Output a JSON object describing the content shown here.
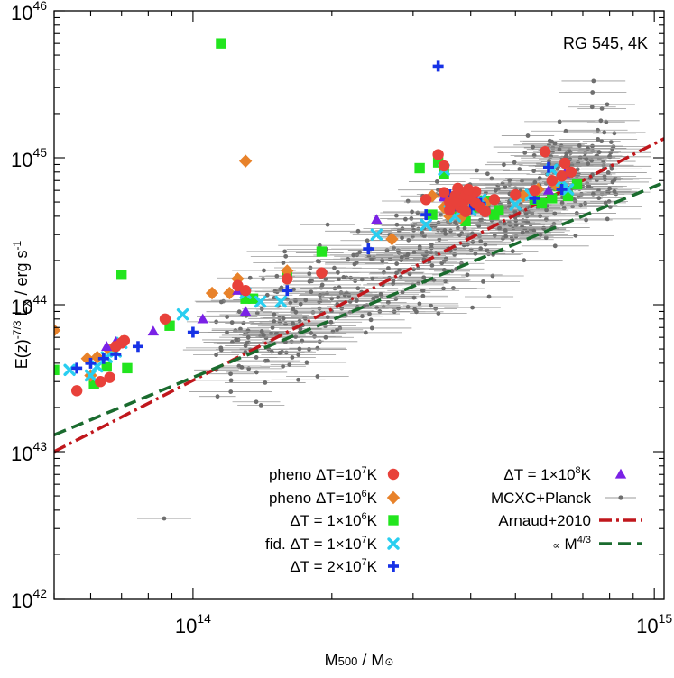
{
  "chart_data": {
    "type": "scatter",
    "annotation": "RG 545, 4K",
    "xlabel": "M500 / M⊙",
    "ylabel": "E(z)-7/3 LX / erg s-1",
    "xscale": "log",
    "yscale": "log",
    "xlim": [
      50000000000000.0,
      1050000000000000.0
    ],
    "ylim": [
      1e+42,
      1e+46
    ],
    "x_ticks": [
      {
        "value": 100000000000000.0,
        "base": "10",
        "exp": "14"
      },
      {
        "value": 1000000000000000.0,
        "base": "10",
        "exp": "15"
      }
    ],
    "y_ticks": [
      {
        "value": 1e+42,
        "base": "10",
        "exp": "42"
      },
      {
        "value": 1e+43,
        "base": "10",
        "exp": "43"
      },
      {
        "value": 1e+44,
        "base": "10",
        "exp": "44"
      },
      {
        "value": 1e+45,
        "base": "10",
        "exp": "45"
      },
      {
        "value": 1e+46,
        "base": "10",
        "exp": "46"
      }
    ],
    "grid": false,
    "legend_position": "bottom",
    "lines": [
      {
        "name": "Arnaud+2010",
        "color": "#c0171c",
        "style": "dash-dot",
        "points": [
          [
            50000000000000.0,
            1e+43
          ],
          [
            1050000000000000.0,
            1.35e+45
          ]
        ]
      },
      {
        "name": "∝ M4/3",
        "color": "#1a6b2e",
        "style": "dashed",
        "points": [
          [
            50000000000000.0,
            1.3e+43
          ],
          [
            1050000000000000.0,
            6.8e+44
          ]
        ]
      }
    ],
    "series": [
      {
        "name": "pheno ΔT=107K",
        "legend": [
          "pheno ΔT=10",
          "7",
          "K"
        ],
        "marker": "circle",
        "color": "#e8413a",
        "points": [
          [
            56000000000000.0,
            2.6e+43
          ],
          [
            63000000000000.0,
            3e+43
          ],
          [
            66000000000000.0,
            3.2e+43
          ],
          [
            68000000000000.0,
            5.2e+43
          ],
          [
            70000000000000.0,
            5.5e+43
          ],
          [
            71000000000000.0,
            5.7e+43
          ],
          [
            87000000000000.0,
            8e+43
          ],
          [
            125000000000000.0,
            1.35e+44
          ],
          [
            130000000000000.0,
            1.25e+44
          ],
          [
            160000000000000.0,
            1.5e+44
          ],
          [
            190000000000000.0,
            1.65e+44
          ],
          [
            320000000000000.0,
            5.2e+44
          ],
          [
            340000000000000.0,
            1.05e+45
          ],
          [
            350000000000000.0,
            5.8e+44
          ],
          [
            360000000000000.0,
            5e+44
          ],
          [
            370000000000000.0,
            5.5e+44
          ],
          [
            375000000000000.0,
            6.2e+44
          ],
          [
            380000000000000.0,
            4.6e+44
          ],
          [
            385000000000000.0,
            5e+44
          ],
          [
            390000000000000.0,
            5.6e+44
          ],
          [
            400000000000000.0,
            5.3e+44
          ],
          [
            410000000000000.0,
            4.9e+44
          ],
          [
            420000000000000.0,
            4.6e+44
          ],
          [
            430000000000000.0,
            4.3e+44
          ],
          [
            410000000000000.0,
            5.9e+44
          ],
          [
            390000000000000.0,
            4.3e+44
          ],
          [
            370000000000000.0,
            4.9e+44
          ],
          [
            450000000000000.0,
            5.2e+44
          ],
          [
            500000000000000.0,
            5.6e+44
          ],
          [
            550000000000000.0,
            6e+44
          ],
          [
            580000000000000.0,
            1.1e+45
          ],
          [
            600000000000000.0,
            7e+44
          ],
          [
            630000000000000.0,
            7.5e+44
          ],
          [
            640000000000000.0,
            9.2e+44
          ],
          [
            660000000000000.0,
            8e+44
          ],
          [
            350000000000000.0,
            8.8e+44
          ],
          [
            360000000000000.0,
            4.4e+44
          ],
          [
            395000000000000.0,
            6.1e+44
          ]
        ]
      },
      {
        "name": "pheno ΔT=106K",
        "legend": [
          "pheno ΔT=10",
          "6",
          "K"
        ],
        "marker": "diamond",
        "color": "#e8822a",
        "points": [
          [
            50000000000000.0,
            6.7e+43
          ],
          [
            59000000000000.0,
            4.3e+43
          ],
          [
            60000000000000.0,
            3.3e+43
          ],
          [
            62000000000000.0,
            4.4e+43
          ],
          [
            66000000000000.0,
            4.9e+43
          ],
          [
            68000000000000.0,
            5.3e+43
          ],
          [
            70000000000000.0,
            5.6e+43
          ],
          [
            110000000000000.0,
            1.2e+44
          ],
          [
            120000000000000.0,
            1.2e+44
          ],
          [
            125000000000000.0,
            1.5e+44
          ],
          [
            130000000000000.0,
            9.5e+44
          ],
          [
            160000000000000.0,
            1.7e+44
          ],
          [
            270000000000000.0,
            2.8e+44
          ],
          [
            330000000000000.0,
            5.5e+44
          ],
          [
            350000000000000.0,
            4.6e+44
          ],
          [
            360000000000000.0,
            4e+44
          ],
          [
            375000000000000.0,
            4.6e+44
          ],
          [
            390000000000000.0,
            4.8e+44
          ],
          [
            410000000000000.0,
            5.1e+44
          ],
          [
            430000000000000.0,
            4.9e+44
          ],
          [
            520000000000000.0,
            5.5e+44
          ],
          [
            560000000000000.0,
            6.1e+44
          ],
          [
            610000000000000.0,
            6.6e+44
          ],
          [
            380000000000000.0,
            3.9e+44
          ]
        ]
      },
      {
        "name": "ΔT = 1×106K",
        "legend": [
          "ΔT = 1×10",
          "6",
          "K"
        ],
        "marker": "square",
        "color": "#22e51e",
        "points": [
          [
            50000000000000.0,
            3.6e+43
          ],
          [
            61000000000000.0,
            2.9e+43
          ],
          [
            65000000000000.0,
            3.8e+43
          ],
          [
            67000000000000.0,
            4.9e+43
          ],
          [
            70000000000000.0,
            1.6e+44
          ],
          [
            72000000000000.0,
            3.7e+43
          ],
          [
            89000000000000.0,
            7.2e+43
          ],
          [
            115000000000000.0,
            6e+45
          ],
          [
            130000000000000.0,
            1.1e+44
          ],
          [
            135000000000000.0,
            1.1e+44
          ],
          [
            160000000000000.0,
            1.6e+44
          ],
          [
            190000000000000.0,
            2.3e+44
          ],
          [
            310000000000000.0,
            8.5e+44
          ],
          [
            340000000000000.0,
            9.3e+44
          ],
          [
            350000000000000.0,
            7.8e+44
          ],
          [
            370000000000000.0,
            4.2e+44
          ],
          [
            380000000000000.0,
            5.5e+44
          ],
          [
            390000000000000.0,
            3.7e+44
          ],
          [
            410000000000000.0,
            4.6e+44
          ],
          [
            430000000000000.0,
            5.1e+44
          ],
          [
            450000000000000.0,
            4.1e+44
          ],
          [
            550000000000000.0,
            5.2e+44
          ],
          [
            570000000000000.0,
            4.9e+44
          ],
          [
            600000000000000.0,
            5.3e+44
          ],
          [
            620000000000000.0,
            6.4e+44
          ],
          [
            650000000000000.0,
            5.5e+44
          ],
          [
            680000000000000.0,
            6.6e+44
          ],
          [
            330000000000000.0,
            4.1e+44
          ],
          [
            365000000000000.0,
            4.7e+44
          ],
          [
            460000000000000.0,
            4.4e+44
          ]
        ]
      },
      {
        "name": "fid. ΔT = 1×107K",
        "legend": [
          "fid. ΔT = 1×10",
          "7",
          "K"
        ],
        "marker": "cross",
        "color": "#29cef0",
        "points": [
          [
            54000000000000.0,
            3.6e+43
          ],
          [
            60000000000000.0,
            3.3e+43
          ],
          [
            62000000000000.0,
            3.8e+43
          ],
          [
            65000000000000.0,
            4.4e+43
          ],
          [
            68000000000000.0,
            4.8e+43
          ],
          [
            70000000000000.0,
            5.5e+43
          ],
          [
            95000000000000.0,
            8.6e+43
          ],
          [
            130000000000000.0,
            1.2e+44
          ],
          [
            140000000000000.0,
            1.05e+44
          ],
          [
            155000000000000.0,
            1.05e+44
          ],
          [
            250000000000000.0,
            3e+44
          ],
          [
            320000000000000.0,
            3.5e+44
          ],
          [
            350000000000000.0,
            8.3e+44
          ],
          [
            360000000000000.0,
            5e+44
          ],
          [
            370000000000000.0,
            4e+44
          ],
          [
            385000000000000.0,
            4.6e+44
          ],
          [
            400000000000000.0,
            4.4e+44
          ],
          [
            420000000000000.0,
            5.2e+44
          ],
          [
            500000000000000.0,
            4.8e+44
          ],
          [
            540000000000000.0,
            5.6e+44
          ],
          [
            600000000000000.0,
            8.3e+44
          ],
          [
            630000000000000.0,
            7e+44
          ],
          [
            650000000000000.0,
            6.1e+44
          ]
        ]
      },
      {
        "name": "ΔT = 2×107K",
        "legend": [
          "ΔT = 2×10",
          "7",
          "K"
        ],
        "marker": "plus",
        "color": "#1732e6",
        "points": [
          [
            56000000000000.0,
            3.7e+43
          ],
          [
            60000000000000.0,
            4e+43
          ],
          [
            64000000000000.0,
            4.3e+43
          ],
          [
            68000000000000.0,
            4.6e+43
          ],
          [
            76000000000000.0,
            5.2e+43
          ],
          [
            100000000000000.0,
            6.5e+43
          ],
          [
            160000000000000.0,
            1.25e+44
          ],
          [
            240000000000000.0,
            2.4e+44
          ],
          [
            320000000000000.0,
            4.1e+44
          ],
          [
            340000000000000.0,
            4.2e+45
          ],
          [
            360000000000000.0,
            5.6e+44
          ],
          [
            380000000000000.0,
            5e+44
          ],
          [
            400000000000000.0,
            4.5e+44
          ],
          [
            420000000000000.0,
            4.9e+44
          ],
          [
            550000000000000.0,
            5.3e+44
          ],
          [
            590000000000000.0,
            8.6e+44
          ],
          [
            630000000000000.0,
            6.1e+44
          ],
          [
            370000000000000.0,
            4.7e+44
          ]
        ]
      },
      {
        "name": "ΔT = 1×108K",
        "legend": [
          "ΔT = 1×10",
          "8",
          "K"
        ],
        "marker": "triangle",
        "color": "#7a21e6",
        "points": [
          [
            65000000000000.0,
            5.2e+43
          ],
          [
            68000000000000.0,
            5.6e+43
          ],
          [
            82000000000000.0,
            6.6e+43
          ],
          [
            105000000000000.0,
            8e+43
          ],
          [
            125000000000000.0,
            1.25e+44
          ],
          [
            130000000000000.0,
            9e+43
          ],
          [
            250000000000000.0,
            3.8e+44
          ],
          [
            350000000000000.0,
            5.4e+44
          ],
          [
            370000000000000.0,
            5e+44
          ],
          [
            390000000000000.0,
            4.6e+44
          ],
          [
            410000000000000.0,
            5.2e+44
          ],
          [
            590000000000000.0,
            6e+44
          ],
          [
            640000000000000.0,
            7.8e+44
          ]
        ]
      }
    ],
    "observed": {
      "name": "MCXC+Planck",
      "color": "#6e6e6e",
      "count": 620,
      "seed": 7,
      "slope_vs_m500": 1.5,
      "norm_at_4e14": 3.2e+44,
      "log_scatter_dex": 0.19,
      "log_mass_range": [
        14.05,
        14.92
      ],
      "xerr_dex": 0.065
    }
  }
}
